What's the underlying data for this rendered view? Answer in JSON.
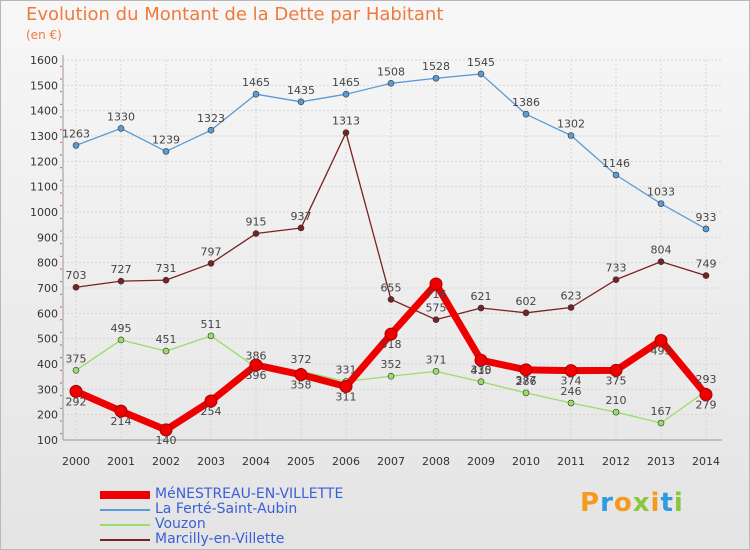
{
  "title": "Evolution du Montant de la Dette par Habitant",
  "subtitle": "(en €)",
  "logo": {
    "letters": [
      {
        "char": "P",
        "color": "#f59a1f"
      },
      {
        "char": "r",
        "color": "#2f9be0"
      },
      {
        "char": "o",
        "color": "#f59a1f"
      },
      {
        "char": "x",
        "color": "#8cc63f"
      },
      {
        "char": "i",
        "color": "#f59a1f"
      },
      {
        "char": "t",
        "color": "#2f9be0"
      },
      {
        "char": "i",
        "color": "#8cc63f"
      }
    ]
  },
  "chart_data": {
    "type": "line",
    "title": "Evolution du Montant de la Dette par Habitant",
    "subtitle": "(en €)",
    "x": [
      "2000",
      "2001",
      "2002",
      "2003",
      "2004",
      "2005",
      "2006",
      "2007",
      "2008",
      "2009",
      "2010",
      "2011",
      "2012",
      "2013",
      "2014"
    ],
    "ylim": [
      100,
      1600
    ],
    "yticks": [
      100,
      200,
      300,
      400,
      500,
      600,
      700,
      800,
      900,
      1000,
      1100,
      1200,
      1300,
      1400,
      1500,
      1600
    ],
    "grid": true,
    "legend_position": "bottom",
    "series": [
      {
        "name": "MéNESTREAU-EN-VILLETTE",
        "color": "#ee0000",
        "width": "thick",
        "labels_below": true,
        "values": [
          292,
          214,
          140,
          254,
          396,
          358,
          311,
          518,
          716,
          415,
          377,
          374,
          375,
          493,
          279
        ]
      },
      {
        "name": "La Ferté-Saint-Aubin",
        "color": "#5b9bd5",
        "width": "thin",
        "labels_below": false,
        "values": [
          1263,
          1330,
          1239,
          1323,
          1465,
          1435,
          1465,
          1508,
          1528,
          1545,
          1386,
          1302,
          1146,
          1033,
          933
        ]
      },
      {
        "name": "Vouzon",
        "color": "#99dd66",
        "width": "thin",
        "labels_below": false,
        "values": [
          375,
          495,
          451,
          511,
          386,
          372,
          331,
          352,
          371,
          330,
          286,
          246,
          210,
          167,
          293
        ]
      },
      {
        "name": "Marcilly-en-Villette",
        "color": "#7a2222",
        "width": "thin",
        "labels_below": false,
        "values": [
          703,
          727,
          731,
          797,
          915,
          937,
          1313,
          655,
          575,
          621,
          602,
          623,
          733,
          804,
          749
        ]
      }
    ]
  }
}
